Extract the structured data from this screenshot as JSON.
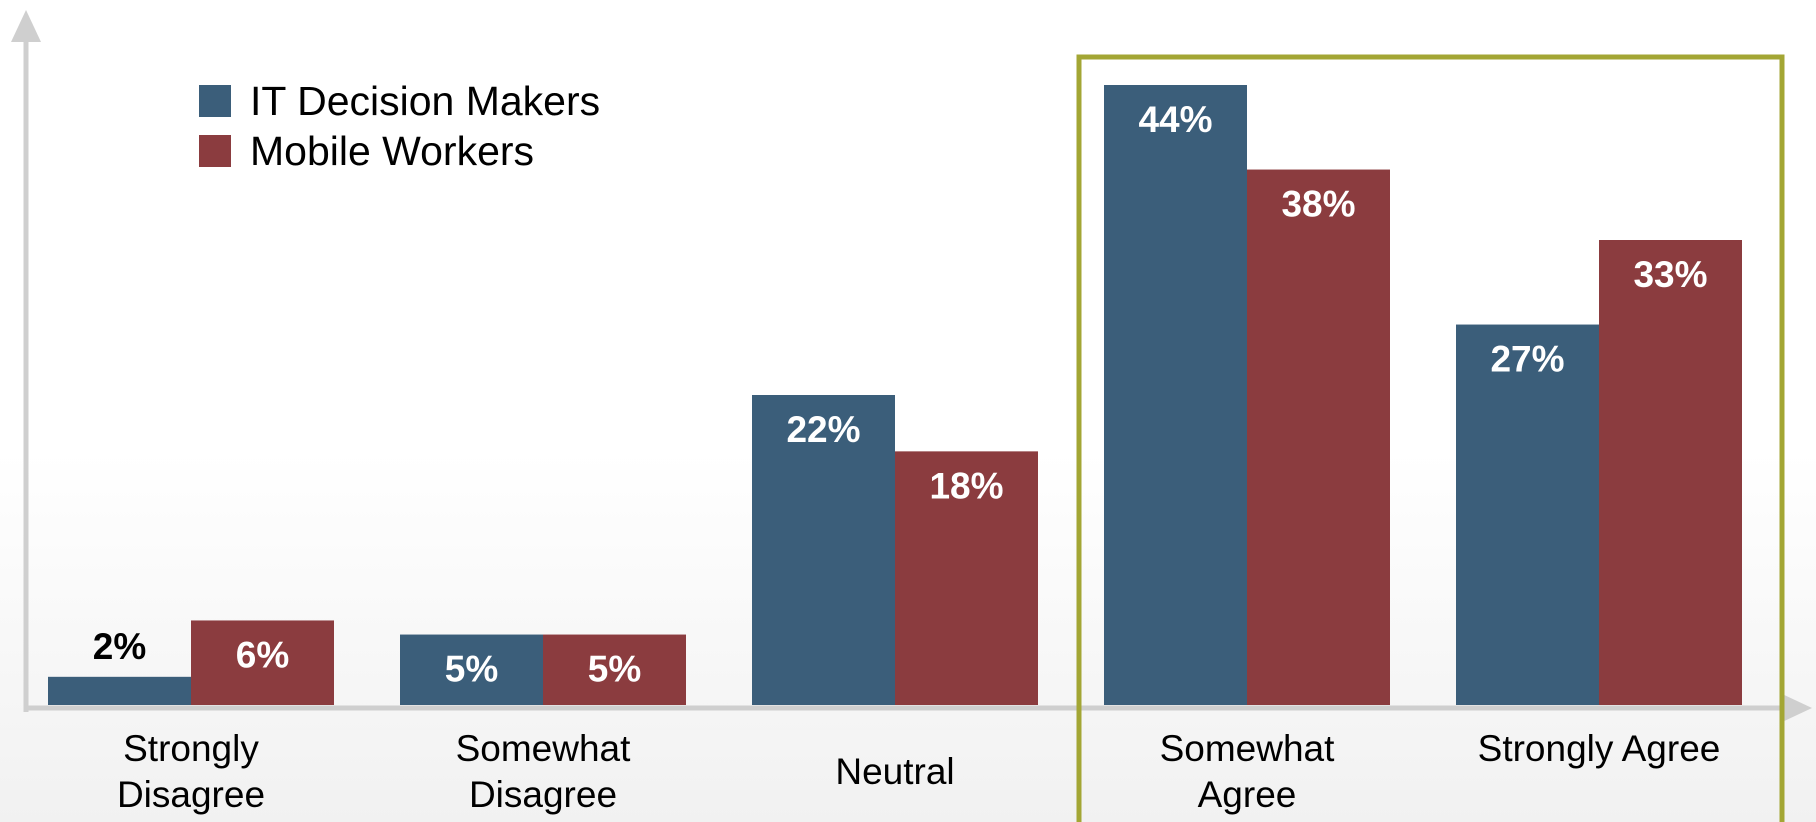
{
  "chart_data": {
    "type": "bar",
    "categories": [
      [
        "Strongly",
        "Disagree"
      ],
      [
        "Somewhat",
        "Disagree"
      ],
      [
        "Neutral"
      ],
      [
        "Somewhat",
        "Agree"
      ],
      [
        "Strongly Agree"
      ]
    ],
    "series": [
      {
        "name": "IT Decision Makers",
        "color": "#3b5e7a",
        "values": [
          2,
          5,
          22,
          44,
          27
        ]
      },
      {
        "name": "Mobile Workers",
        "color": "#8b3c3f",
        "values": [
          6,
          5,
          18,
          38,
          33
        ]
      }
    ],
    "value_suffix": "%",
    "ylim": [
      0,
      45
    ],
    "grid": false,
    "legend": "top-left",
    "highlight": {
      "categories": [
        3,
        4
      ],
      "color": "#a3a634"
    },
    "axis_color": "#cfcfcf"
  }
}
